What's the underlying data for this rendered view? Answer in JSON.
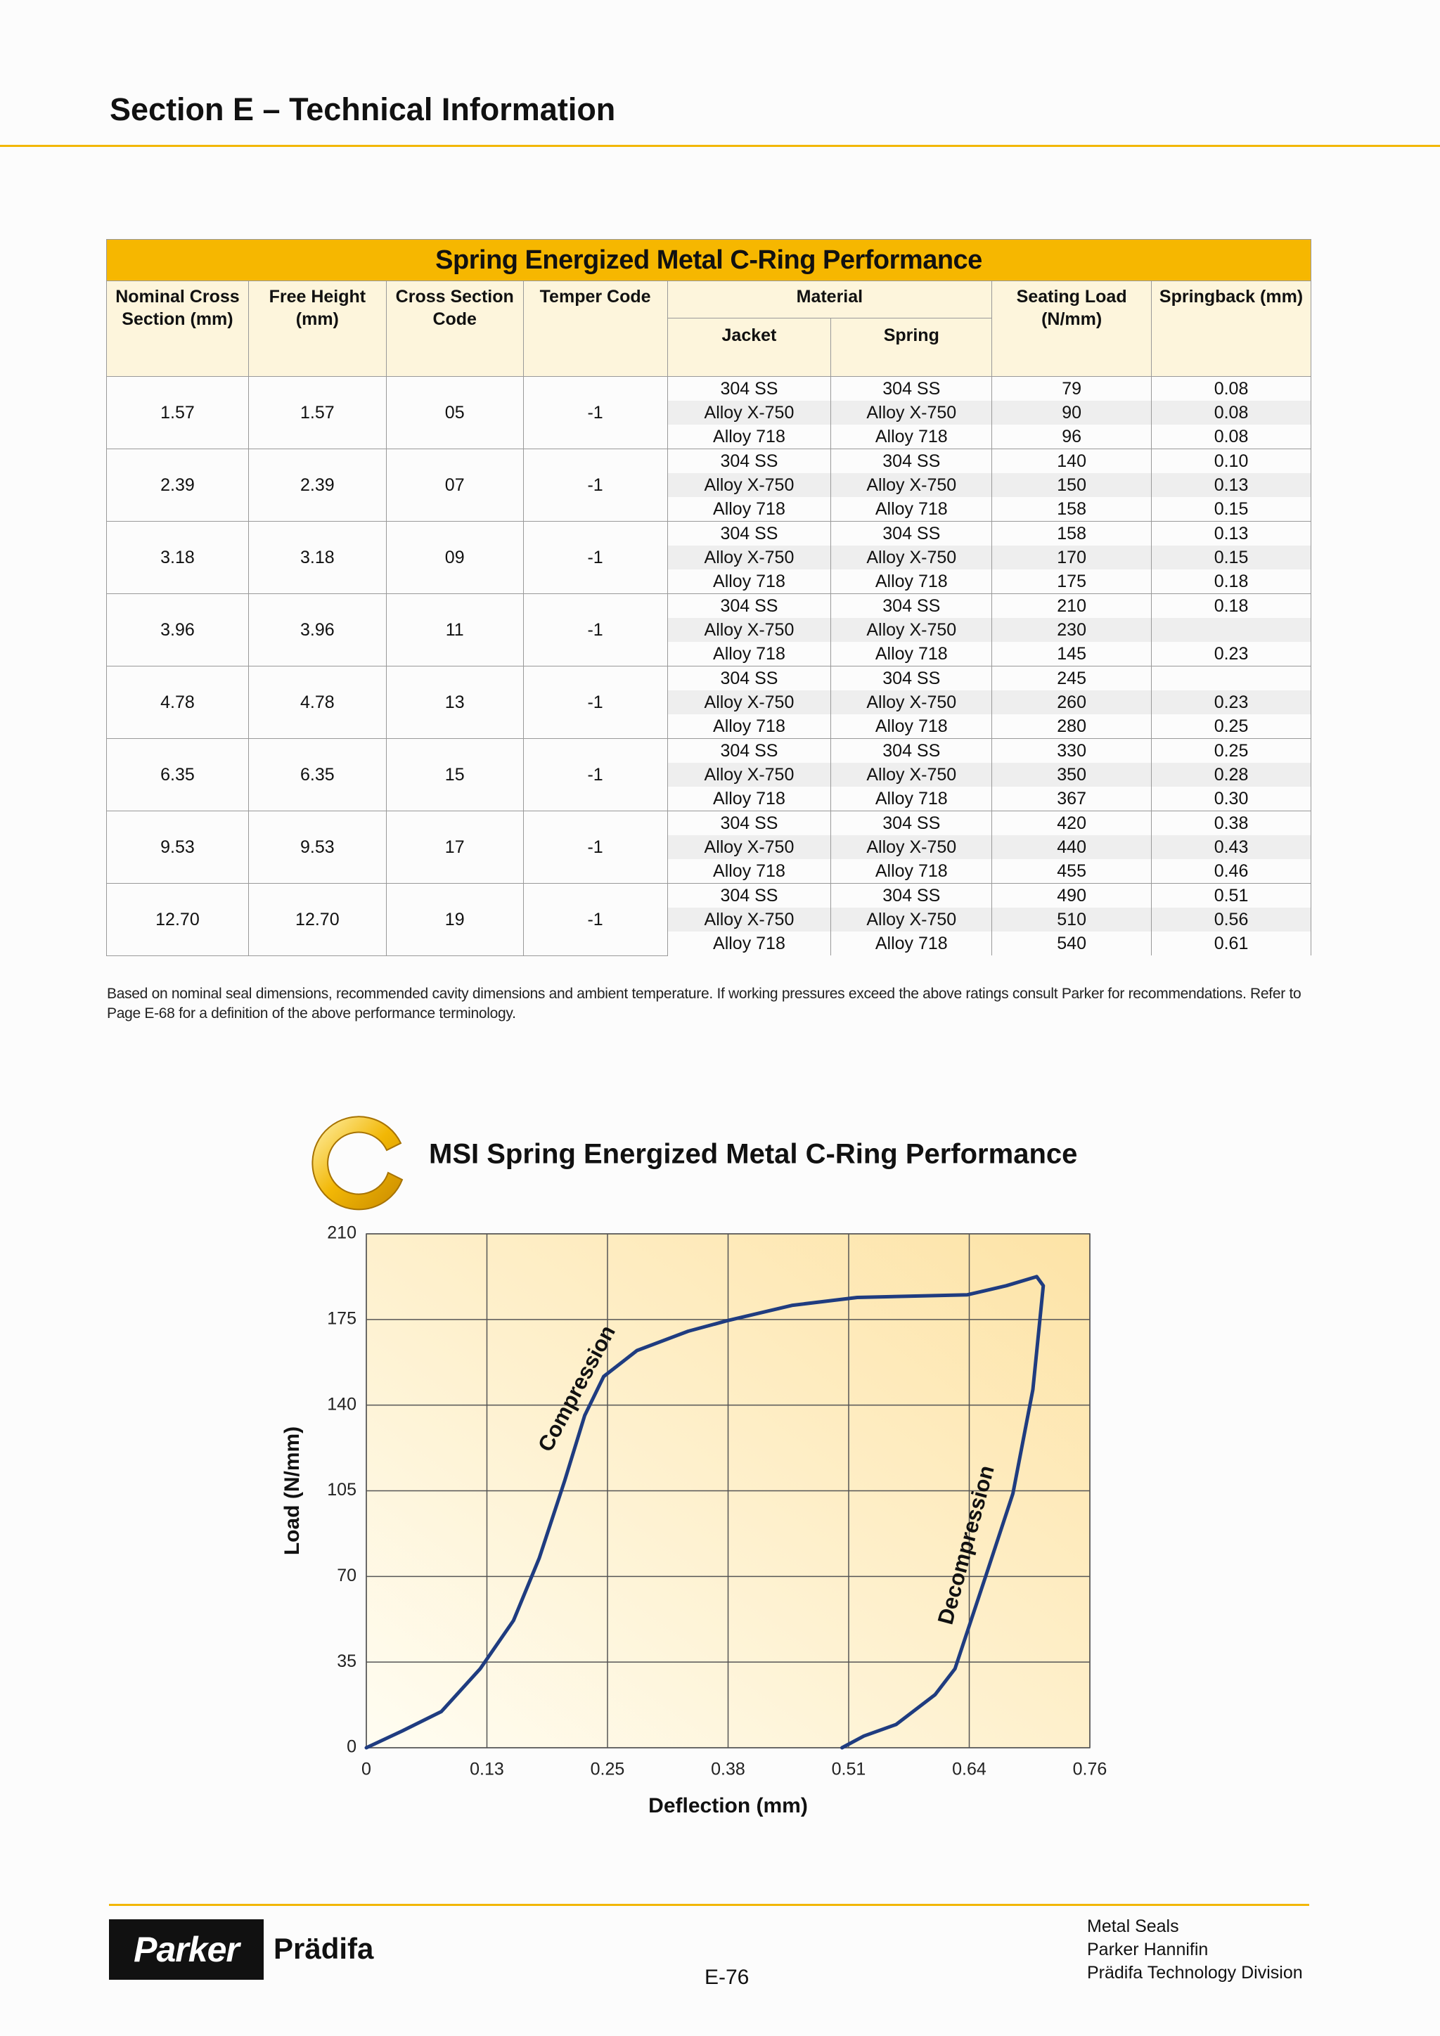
{
  "header": {
    "title": "Section E – Technical Information"
  },
  "table": {
    "title": "Spring Energized Metal C-Ring Performance",
    "columns": [
      "Nominal Cross Section (mm)",
      "Free Height (mm)",
      "Cross Section Code",
      "Temper Code",
      "Material",
      "Seating Load (N/mm)",
      "Springback (mm)"
    ],
    "material_columns": [
      "Jacket",
      "Spring"
    ],
    "rows": [
      {
        "cells": [
          "1.57",
          "1.57",
          "05",
          "-1"
        ],
        "sub": [
          [
            "304 SS",
            "304 SS",
            "79",
            "0.08"
          ],
          [
            "Alloy X-750",
            "Alloy X-750",
            "90",
            "0.08"
          ],
          [
            "Alloy 718",
            "Alloy 718",
            "96",
            "0.08"
          ]
        ]
      },
      {
        "cells": [
          "2.39",
          "2.39",
          "07",
          "-1"
        ],
        "sub": [
          [
            "304 SS",
            "304 SS",
            "140",
            "0.10"
          ],
          [
            "Alloy X-750",
            "Alloy X-750",
            "150",
            "0.13"
          ],
          [
            "Alloy 718",
            "Alloy 718",
            "158",
            "0.15"
          ]
        ]
      },
      {
        "cells": [
          "3.18",
          "3.18",
          "09",
          "-1"
        ],
        "sub": [
          [
            "304 SS",
            "304 SS",
            "158",
            "0.13"
          ],
          [
            "Alloy X-750",
            "Alloy X-750",
            "170",
            "0.15"
          ],
          [
            "Alloy 718",
            "Alloy 718",
            "175",
            "0.18"
          ]
        ]
      },
      {
        "cells": [
          "3.96",
          "3.96",
          "11",
          "-1"
        ],
        "sub": [
          [
            "304 SS",
            "304 SS",
            "210",
            "0.18"
          ],
          [
            "Alloy X-750",
            "Alloy X-750",
            "230",
            null
          ],
          [
            "Alloy 718",
            "Alloy 718",
            "145",
            "0.23"
          ]
        ]
      },
      {
        "cells": [
          "4.78",
          "4.78",
          "13",
          "-1"
        ],
        "sub": [
          [
            "304 SS",
            "304 SS",
            "245",
            null
          ],
          [
            "Alloy X-750",
            "Alloy X-750",
            "260",
            "0.23"
          ],
          [
            "Alloy 718",
            "Alloy 718",
            "280",
            "0.25"
          ]
        ]
      },
      {
        "cells": [
          "6.35",
          "6.35",
          "15",
          "-1"
        ],
        "sub": [
          [
            "304 SS",
            "304 SS",
            "330",
            "0.25"
          ],
          [
            "Alloy X-750",
            "Alloy X-750",
            "350",
            "0.28"
          ],
          [
            "Alloy 718",
            "Alloy 718",
            "367",
            "0.30"
          ]
        ]
      },
      {
        "cells": [
          "9.53",
          "9.53",
          "17",
          "-1"
        ],
        "sub": [
          [
            "304 SS",
            "304 SS",
            "420",
            "0.38"
          ],
          [
            "Alloy X-750",
            "Alloy X-750",
            "440",
            "0.43"
          ],
          [
            "Alloy 718",
            "Alloy 718",
            "455",
            "0.46"
          ]
        ]
      },
      {
        "cells": [
          "12.70",
          "12.70",
          "19",
          "-1"
        ],
        "sub": [
          [
            "304 SS",
            "304 SS",
            "490",
            "0.51"
          ],
          [
            "Alloy X-750",
            "Alloy X-750",
            "510",
            "0.56"
          ],
          [
            "Alloy 718",
            "Alloy 718",
            "540",
            "0.61"
          ]
        ]
      }
    ]
  },
  "note": "Based on nominal seal dimensions, recommended cavity dimensions and ambient temperature. If working pressures exceed the above ratings consult Parker for recommendations. Refer to Page E-68 for a definition of the above performance terminology.",
  "chart_data": {
    "type": "line",
    "title": "MSI Spring Energized Metal C-Ring Performance",
    "x_label": "Deflection (mm)",
    "y_label": "Load (N/mm)",
    "xlim": [
      0,
      0.762
    ],
    "ylim": [
      0,
      210
    ],
    "xticks": [
      0,
      {
        "value": 0.127,
        "label": "0.13"
      },
      {
        "value": 0.254,
        "label": "0.25"
      },
      {
        "value": 0.381,
        "label": "0.38"
      },
      {
        "value": 0.508,
        "label": "0.51"
      },
      {
        "value": 0.635,
        "label": "0.64"
      },
      {
        "value": 0.762,
        "label": "0.76"
      }
    ],
    "yticks": [
      0,
      35,
      70,
      105,
      140,
      175,
      210
    ],
    "grid": true,
    "series": [
      {
        "name": "Compression",
        "color": "#1f3c80",
        "x": [
          0,
          0.038,
          0.079,
          0.12,
          0.155,
          0.182,
          0.209,
          0.23,
          0.25,
          0.285,
          0.339,
          0.38,
          0.449,
          0.517,
          0.633,
          0.674,
          0.706
        ],
        "values": [
          0,
          6.9,
          14.8,
          32.3,
          52,
          77.4,
          109.2,
          135.8,
          151.7,
          162.3,
          170.2,
          174.5,
          180.8,
          184,
          185.1,
          188.8,
          192.5
        ]
      },
      {
        "name": "Decompression",
        "color": "#1f3c80",
        "x": [
          0.706,
          0.713,
          0.702,
          0.681,
          0.654,
          0.62,
          0.599,
          0.558,
          0.524,
          0.501
        ],
        "values": [
          192.5,
          188.8,
          146.4,
          103.9,
          72.1,
          32.3,
          21.7,
          9.5,
          4.8,
          0
        ]
      }
    ]
  },
  "footer": {
    "logo": "Parker",
    "logo_sub": "Prädifa",
    "page": "E-76",
    "lines": [
      "Metal Seals",
      "Parker Hannifin",
      "Prädifa Technology Division"
    ]
  }
}
